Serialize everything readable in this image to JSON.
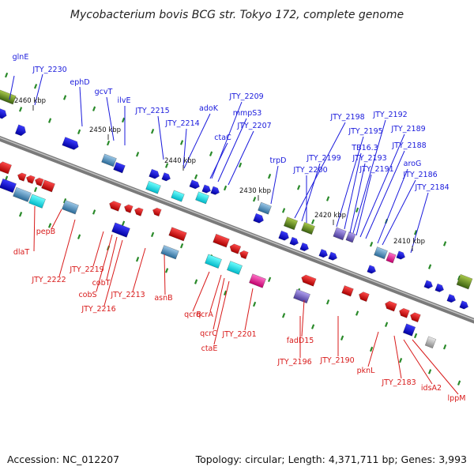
{
  "title": "Mycobacterium bovis BCG str. Tokyo 172, complete genome",
  "accession": "Accession: NC_012207",
  "summary": "Topology: circular; Length: 4,371,711 bp; Genes: 3,993",
  "colors": {
    "forward_label": "#1a1adc",
    "reverse_label": "#d81a1a",
    "backbone": "#8a8a8a",
    "tick": "#2a8a2a"
  },
  "scale_labels": [
    "2460 kbp",
    "2450 kbp",
    "2440 kbp",
    "2430 kbp",
    "2420 kbp",
    "2410 kbp"
  ],
  "forward_genes": [
    "glnE",
    "JTY_2230",
    "ephD",
    "gcvT",
    "ilvE",
    "JTY_2215",
    "JTY_2214",
    "adoK",
    "JTY_2209",
    "mmpS3",
    "ctaC",
    "JTY_2207",
    "trpD",
    "JTY_2198",
    "JTY_2199",
    "JTY_2200",
    "JTY_2195",
    "JTY_2192",
    "TB16.3",
    "JTY_2189",
    "JTY_2193",
    "JTY_2188",
    "JTY_2191",
    "aroG",
    "JTY_2186",
    "JTY_2184"
  ],
  "reverse_genes": [
    "dlaT",
    "pepB",
    "JTY_2222",
    "JTY_2219",
    "cobT",
    "cobS",
    "JTY_2216",
    "JTY_2213",
    "asnB",
    "qcrB",
    "qcrA",
    "qcrC",
    "ctaE",
    "JTY_2201",
    "fadD15",
    "JTY_2196",
    "JTY_2190",
    "pknL",
    "JTY_2183",
    "idsA2",
    "lppM"
  ]
}
